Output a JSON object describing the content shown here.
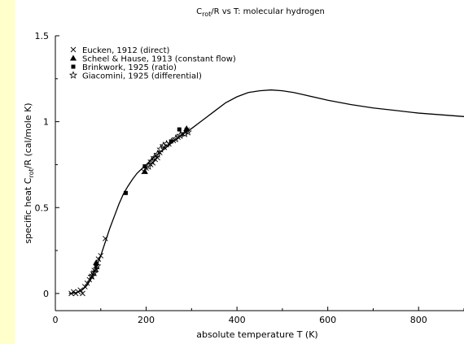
{
  "chart_data": {
    "type": "scatter",
    "title": "C_rot/R vs T: molecular hydrogen",
    "title_parts": {
      "pre": "C",
      "sub": "rot",
      "post": "/R vs T: molecular hydrogen"
    },
    "xlabel": "absolute temperature T (K)",
    "ylabel": "specific heat C_rot/R (cal/mole K)",
    "ylabel_parts": {
      "pre": "specific heat C",
      "sub": "rot",
      "post": "/R (cal/mole K)"
    },
    "xlim": [
      0,
      900
    ],
    "ylim": [
      -0.1,
      1.5
    ],
    "xticks": [
      0,
      200,
      400,
      600,
      800
    ],
    "yticks": [
      0,
      0.5,
      1,
      1.5
    ],
    "ytick_labels": [
      "0",
      "0.5",
      "1",
      "1.5"
    ],
    "grid": false,
    "legend_position": "top-left",
    "colors": {
      "background": "#ffffcc",
      "plot_area": "#ffffff",
      "ink": "#000000"
    },
    "series": [
      {
        "name": "Eucken, 1912 (direct)",
        "marker": "x",
        "x": [
          35,
          40,
          45,
          50,
          55,
          60,
          65,
          70,
          75,
          80,
          85,
          90,
          95,
          100,
          110,
          195,
          200,
          210,
          215,
          220,
          225,
          230,
          240,
          250,
          260,
          270,
          280,
          290
        ],
        "y": [
          0.0,
          0.01,
          0.0,
          0.01,
          0.02,
          0.0,
          0.04,
          0.06,
          0.08,
          0.1,
          0.12,
          0.14,
          0.2,
          0.22,
          0.32,
          0.71,
          0.73,
          0.75,
          0.76,
          0.78,
          0.79,
          0.82,
          0.85,
          0.87,
          0.89,
          0.91,
          0.93,
          0.95
        ]
      },
      {
        "name": "Scheel & Hause, 1913 (constant flow)",
        "marker": "triangle",
        "x": [
          90,
          197,
          289
        ],
        "y": [
          0.18,
          0.71,
          0.96
        ]
      },
      {
        "name": "Brinkwork, 1925 (ratio)",
        "marker": "square",
        "x": [
          90,
          155,
          197,
          255,
          273
        ],
        "y": [
          0.17,
          0.585,
          0.74,
          0.885,
          0.955
        ]
      },
      {
        "name": "Giacomini, 1925 (differential)",
        "marker": "star",
        "x": [
          80,
          85,
          88,
          92,
          205,
          212,
          218,
          225,
          232,
          238,
          245,
          265,
          275,
          285,
          292
        ],
        "y": [
          0.1,
          0.12,
          0.14,
          0.16,
          0.74,
          0.77,
          0.79,
          0.81,
          0.84,
          0.86,
          0.87,
          0.9,
          0.92,
          0.93,
          0.94
        ]
      },
      {
        "marker": "none",
        "x": [
          30,
          40,
          50,
          60,
          70,
          80,
          90,
          100,
          110,
          120,
          130,
          140,
          150,
          160,
          170,
          180,
          190,
          200,
          220,
          240,
          260,
          280,
          300,
          325,
          350,
          375,
          400,
          425,
          450,
          475,
          500,
          525,
          550,
          600,
          650,
          700,
          750,
          800,
          850,
          900
        ],
        "y": [
          0.0,
          0.002,
          0.008,
          0.022,
          0.048,
          0.09,
          0.15,
          0.22,
          0.3,
          0.38,
          0.45,
          0.52,
          0.58,
          0.625,
          0.665,
          0.7,
          0.725,
          0.75,
          0.8,
          0.84,
          0.885,
          0.925,
          0.96,
          1.01,
          1.06,
          1.11,
          1.145,
          1.17,
          1.18,
          1.185,
          1.18,
          1.17,
          1.155,
          1.125,
          1.1,
          1.08,
          1.065,
          1.05,
          1.04,
          1.03
        ]
      }
    ]
  }
}
